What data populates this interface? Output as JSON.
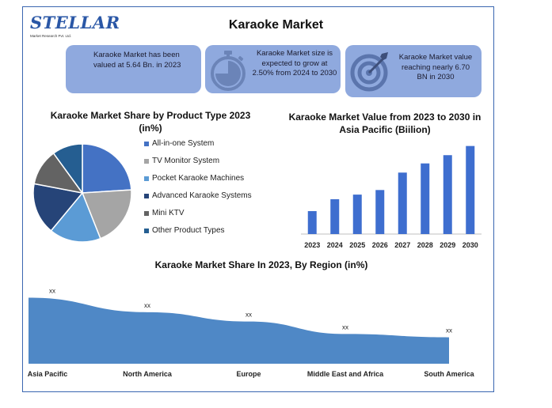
{
  "header": {
    "logo_text": "STELLAR",
    "logo_sub": "Market Research Pvt. Ltd.",
    "title": "Karaoke Market"
  },
  "cards": [
    {
      "text": "Karaoke Market has been valued at 5.64 Bn. in 2023",
      "icon": "none"
    },
    {
      "text": "Karaoke Market size is expected to grow at 2.50% from 2024 to 2030",
      "icon": "stopwatch-icon"
    },
    {
      "text": "Karaoke Market value reaching nearly 6.70 BN in 2030",
      "icon": "target-icon"
    }
  ],
  "colors": {
    "card_bg": "#8fa9de",
    "bar": "#3e6ecf",
    "area": "#4f88c6",
    "frame": "#3a66b0"
  },
  "chart_data": [
    {
      "type": "pie",
      "title": "Karaoke Market Share by Product Type 2023 (in%)",
      "slices": [
        {
          "name": "All-in-one System",
          "value": 24,
          "color": "#4472c4"
        },
        {
          "name": "TV Monitor System",
          "value": 20,
          "color": "#a5a5a5"
        },
        {
          "name": "Pocket Karaoke Machines",
          "value": 17,
          "color": "#5b9bd5"
        },
        {
          "name": "Advanced Karaoke Systems",
          "value": 17,
          "color": "#264478"
        },
        {
          "name": "Mini KTV",
          "value": 12,
          "color": "#636363"
        },
        {
          "name": "Other Product Types",
          "value": 10,
          "color": "#255e91"
        }
      ],
      "legend_position": "right"
    },
    {
      "type": "bar",
      "title": "Karaoke Market Value from 2023 to 2030 in Asia Pacific (Biilion)",
      "categories": [
        "2023",
        "2024",
        "2025",
        "2026",
        "2027",
        "2028",
        "2029",
        "2030"
      ],
      "values": [
        1.25,
        1.9,
        2.15,
        2.4,
        3.35,
        3.85,
        4.3,
        4.8
      ],
      "ylim": [
        0,
        5
      ],
      "color": "#3e6ecf",
      "grid": false
    },
    {
      "type": "area",
      "title": "Karaoke Market Share In 2023, By Region (in%)",
      "categories": [
        "Asia Pacific",
        "North America",
        "Europe",
        "Middle East and Africa",
        "South America"
      ],
      "values": [
        100,
        78,
        64,
        45,
        40
      ],
      "data_labels": [
        "xx",
        "xx",
        "xx",
        "xx",
        "xx"
      ],
      "ylim": [
        0,
        115
      ],
      "color": "#4f88c6"
    }
  ]
}
